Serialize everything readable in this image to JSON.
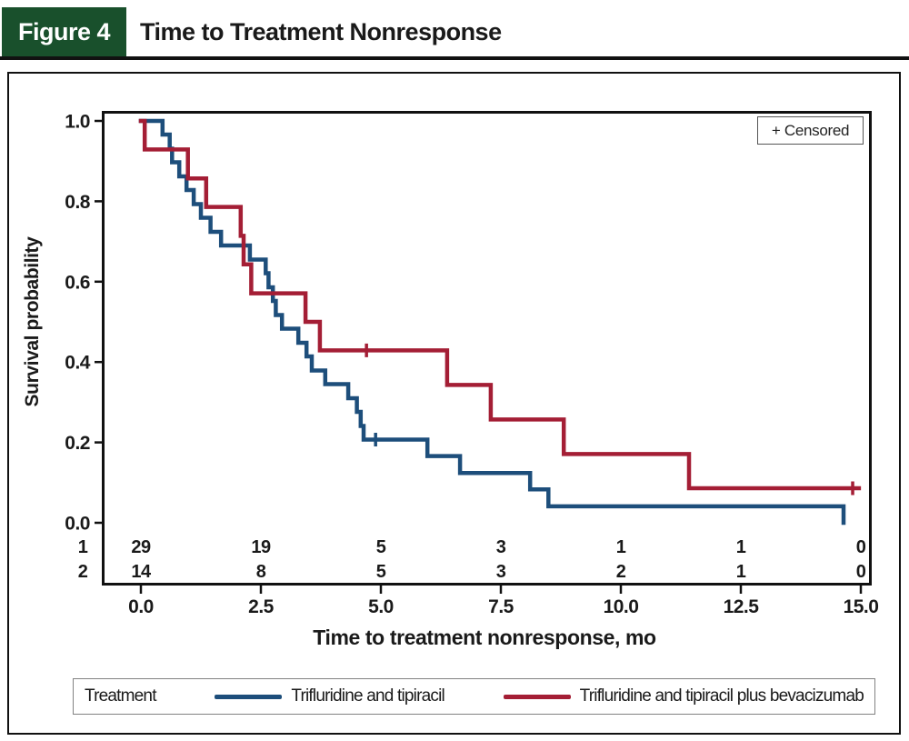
{
  "colors": {
    "blue": "#1d4e7b",
    "red": "#a41e35",
    "green": "#19502c",
    "ink": "#1a1a1a"
  },
  "header": {
    "figure_label": "Figure 4",
    "title": "Time to Treatment Nonresponse"
  },
  "censored_box": {
    "label": "+ Censored"
  },
  "axes": {
    "y": {
      "title": "Survival probability",
      "ticks": [
        "1.0",
        "0.8",
        "0.6",
        "0.4",
        "0.2",
        "0.0"
      ]
    },
    "x": {
      "title": "Time to treatment nonresponse, mo",
      "ticks": [
        "0.0",
        "2.5",
        "5.0",
        "7.5",
        "10.0",
        "12.5",
        "15.0"
      ]
    }
  },
  "risk_table": {
    "rows": [
      {
        "label": "1",
        "color_key": "blue",
        "counts": [
          "29",
          "19",
          "5",
          "3",
          "1",
          "1",
          "0"
        ]
      },
      {
        "label": "2",
        "color_key": "red",
        "counts": [
          "14",
          "8",
          "5",
          "3",
          "2",
          "1",
          "0"
        ]
      }
    ]
  },
  "legend": {
    "title": "Treatment",
    "items": [
      {
        "label": "Trifluridine and tipiracil",
        "color_key": "blue"
      },
      {
        "label": "Trifluridine and tipiracil plus bevacizumab",
        "color_key": "red"
      }
    ]
  },
  "chart_data": {
    "type": "line",
    "subtype": "kaplan-meier-step",
    "title": "Time to Treatment Nonresponse",
    "xlabel": "Time to treatment nonresponse, mo",
    "ylabel": "Survival probability",
    "x_range": [
      0,
      15
    ],
    "y_range": [
      0,
      1
    ],
    "x_tick_values": [
      0,
      2.5,
      5,
      7.5,
      10,
      12.5,
      15
    ],
    "y_tick_values": [
      1.0,
      0.8,
      0.6,
      0.4,
      0.2,
      0.0
    ],
    "grid": false,
    "legend_position": "bottom",
    "series": [
      {
        "name": "Trifluridine and tipiracil",
        "color_key": "blue",
        "n_at_risk_start": 29,
        "end_t": 14.64,
        "steps": [
          [
            0,
            1.0
          ],
          [
            0.45,
            0.966
          ],
          [
            0.6,
            0.931
          ],
          [
            0.65,
            0.897
          ],
          [
            0.8,
            0.862
          ],
          [
            0.95,
            0.828
          ],
          [
            1.1,
            0.793
          ],
          [
            1.25,
            0.759
          ],
          [
            1.45,
            0.724
          ],
          [
            1.67,
            0.69
          ],
          [
            2.27,
            0.655
          ],
          [
            2.6,
            0.621
          ],
          [
            2.66,
            0.586
          ],
          [
            2.75,
            0.552
          ],
          [
            2.81,
            0.517
          ],
          [
            2.94,
            0.483
          ],
          [
            3.28,
            0.448
          ],
          [
            3.45,
            0.414
          ],
          [
            3.56,
            0.379
          ],
          [
            3.84,
            0.345
          ],
          [
            4.32,
            0.31
          ],
          [
            4.5,
            0.276
          ],
          [
            4.58,
            0.241
          ],
          [
            4.64,
            0.207
          ],
          [
            5.97,
            0.166
          ],
          [
            6.65,
            0.124
          ],
          [
            8.11,
            0.083
          ],
          [
            8.49,
            0.041
          ],
          [
            14.64,
            0
          ]
        ],
        "censor_marks": [
          [
            4.89,
            0.207
          ]
        ]
      },
      {
        "name": "Trifluridine and tipiracil plus bevacizumab",
        "color_key": "red",
        "n_at_risk_start": 14,
        "end_t": 14.96,
        "steps": [
          [
            0,
            1.0
          ],
          [
            0.08,
            0.929
          ],
          [
            0.98,
            0.857
          ],
          [
            1.36,
            0.786
          ],
          [
            2.08,
            0.714
          ],
          [
            2.14,
            0.643
          ],
          [
            2.3,
            0.571
          ],
          [
            3.43,
            0.5
          ],
          [
            3.73,
            0.429
          ],
          [
            6.38,
            0.343
          ],
          [
            7.29,
            0.257
          ],
          [
            8.81,
            0.171
          ],
          [
            11.42,
            0.086
          ]
        ],
        "censor_marks": [
          [
            4.7,
            0.429
          ],
          [
            14.83,
            0.086
          ]
        ]
      }
    ]
  }
}
